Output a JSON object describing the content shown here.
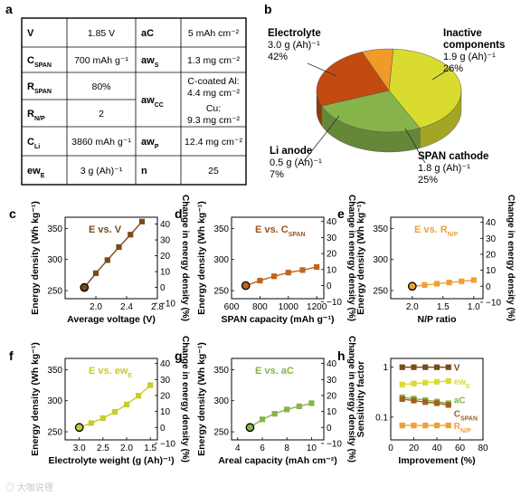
{
  "panel_letters": [
    "a",
    "b",
    "c",
    "d",
    "e",
    "f",
    "g",
    "h"
  ],
  "table": {
    "rows": [
      [
        {
          "main": "V",
          "sub": ""
        },
        "1.85 V",
        {
          "main": "aC",
          "sub": ""
        },
        "5 mAh cm⁻²"
      ],
      [
        {
          "main": "C",
          "sub": "SPAN"
        },
        "700 mAh g⁻¹",
        {
          "main": "aw",
          "sub": "S"
        },
        "1.3 mg cm⁻²"
      ],
      [
        {
          "main": "R",
          "sub": "SPAN"
        },
        "80%",
        {
          "main": "aw",
          "sub": "CC"
        },
        "C-coated Al:|4.4 mg cm⁻²"
      ],
      [
        {
          "main": "R",
          "sub": "N/P"
        },
        "2",
        null,
        "Cu:|9.3 mg cm⁻²"
      ],
      [
        {
          "main": "C",
          "sub": "Li"
        },
        "3860 mAh g⁻¹",
        {
          "main": "aw",
          "sub": "P"
        },
        "12.4 mg cm⁻²"
      ],
      [
        {
          "main": "ew",
          "sub": "E"
        },
        "3 g (Ah)⁻¹",
        {
          "main": "n",
          "sub": ""
        },
        "25"
      ]
    ]
  },
  "pie": {
    "slices": [
      {
        "label": "Electrolyte",
        "value_text": "3.0 g (Ah)⁻¹",
        "percent_text": "42%",
        "value": 42,
        "color": "#d9dc2e"
      },
      {
        "label": "Inactive|components",
        "value_text": "1.9 g (Ah)⁻¹",
        "percent_text": "26%",
        "value": 26,
        "color": "#86b44a"
      },
      {
        "label": "SPAN cathode",
        "value_text": "1.8 g (Ah)⁻¹",
        "percent_text": "25%",
        "value": 25,
        "color": "#c24a10"
      },
      {
        "label": "Li anode",
        "value_text": "0.5 g (Ah)⁻¹",
        "percent_text": "7%",
        "value": 7,
        "color": "#f19a2a"
      }
    ]
  },
  "chart_data": [
    {
      "panel": "c",
      "type": "line",
      "title": "E vs. V",
      "title_color": "#7a4a1a",
      "color": "#7a4a1a",
      "x": [
        1.85,
        2.0,
        2.15,
        2.3,
        2.45,
        2.6
      ],
      "y": [
        255,
        278,
        299,
        320,
        340,
        361
      ],
      "highlight": [
        1.85,
        255
      ],
      "xlabel": "Average voltage (V)",
      "xlim": [
        1.6,
        2.8
      ],
      "xticks": [
        2.0,
        2.4,
        2.8
      ],
      "xtick_labels": [
        "2.0",
        "2.4",
        "2.8"
      ],
      "ylabel": "Energy density (Wh kg⁻¹)",
      "ylim": [
        237,
        368
      ],
      "yticks": [
        250,
        300,
        350
      ],
      "ytick_labels": [
        "250",
        "300",
        "350"
      ],
      "y2label": "Change in energy density (%)",
      "y2ticks": [
        -10,
        0,
        10,
        20,
        30,
        40
      ],
      "y2tick_labels": [
        "−10",
        "0",
        "10",
        "20",
        "30",
        "40"
      ]
    },
    {
      "panel": "d",
      "type": "line",
      "title": "E vs. C",
      "title_sub": "SPAN",
      "title_color": "#a0501a",
      "color": "#c0651e",
      "x": [
        700,
        800,
        900,
        1000,
        1100,
        1200
      ],
      "y": [
        258,
        266,
        273,
        279,
        283,
        288
      ],
      "highlight": [
        700,
        258
      ],
      "xlabel": "SPAN capacity (mAh g⁻¹)",
      "xlim": [
        600,
        1250
      ],
      "xticks": [
        600,
        800,
        1000,
        1200
      ],
      "xtick_labels": [
        "600",
        "800",
        "1000",
        "1200"
      ],
      "ylabel": "Energy density (Wh kg⁻¹)",
      "ylim": [
        237,
        368
      ],
      "yticks": [
        250,
        300,
        350
      ],
      "ytick_labels": [
        "250",
        "300",
        "350"
      ],
      "y2label": "Change in energy density (%)",
      "y2ticks": [
        -10,
        0,
        10,
        20,
        30,
        40
      ],
      "y2tick_labels": [
        "−10",
        "0",
        "10",
        "20",
        "30",
        "40"
      ]
    },
    {
      "panel": "e",
      "type": "line",
      "title": "E vs. R",
      "title_sub": "N/P",
      "title_color": "#f0a030",
      "color": "#f0a030",
      "x": [
        2.0,
        1.8,
        1.6,
        1.4,
        1.2,
        1.0
      ],
      "y": [
        257,
        259,
        261,
        263,
        265,
        267
      ],
      "highlight": [
        2.0,
        257
      ],
      "xlabel": "N/P ratio",
      "xlim": [
        2.35,
        0.85
      ],
      "xticks": [
        2.0,
        1.5,
        1.0
      ],
      "xtick_labels": [
        "2.0",
        "1.5",
        "1.0"
      ],
      "ylabel": "Energy density (Wh kg⁻¹)",
      "ylim": [
        237,
        368
      ],
      "yticks": [
        250,
        300,
        350
      ],
      "ytick_labels": [
        "250",
        "300",
        "350"
      ],
      "y2label": "Change in energy density (%)",
      "y2ticks": [
        -10,
        0,
        10,
        20,
        30,
        40
      ],
      "y2tick_labels": [
        "−10",
        "0",
        "10",
        "20",
        "30",
        "40"
      ]
    },
    {
      "panel": "f",
      "type": "line",
      "title": "E vs. ew",
      "title_sub": "E",
      "title_color": "#c8cc2a",
      "color": "#c8cc2a",
      "x": [
        3.0,
        2.75,
        2.5,
        2.25,
        2.0,
        1.75,
        1.5
      ],
      "y": [
        257,
        264,
        272,
        282,
        294,
        308,
        325
      ],
      "highlight": [
        3.0,
        257
      ],
      "xlabel": "Electrolyte weight (g (Ah)⁻¹)",
      "xlim": [
        3.3,
        1.35
      ],
      "xticks": [
        3.0,
        2.5,
        2.0,
        1.5
      ],
      "xtick_labels": [
        "3.0",
        "2.5",
        "2.0",
        "1.5"
      ],
      "ylabel": "Energy density (Wh kg⁻¹)",
      "ylim": [
        237,
        368
      ],
      "yticks": [
        250,
        300,
        350
      ],
      "ytick_labels": [
        "250",
        "300",
        "350"
      ],
      "y2label": "Change in energy density (%)",
      "y2ticks": [
        -10,
        0,
        10,
        20,
        30,
        40
      ],
      "y2tick_labels": [
        "−10",
        "0",
        "10",
        "20",
        "30",
        "40"
      ]
    },
    {
      "panel": "g",
      "type": "line",
      "title": "E vs. aC",
      "title_color": "#86b44a",
      "color": "#86b44a",
      "x": [
        5,
        6,
        7,
        8,
        9,
        10
      ],
      "y": [
        257,
        270,
        279,
        286,
        291,
        296
      ],
      "highlight": [
        5,
        257
      ],
      "xlabel": "Areal capacity (mAh cm⁻²)",
      "xlim": [
        3.5,
        11
      ],
      "xticks": [
        4,
        6,
        8,
        10
      ],
      "xtick_labels": [
        "4",
        "6",
        "8",
        "10"
      ],
      "ylabel": "Energy density (Wh kg⁻¹)",
      "ylim": [
        237,
        368
      ],
      "yticks": [
        250,
        300,
        350
      ],
      "ytick_labels": [
        "250",
        "300",
        "350"
      ],
      "y2label": "Change in energy density (%)",
      "y2ticks": [
        -10,
        0,
        10,
        20,
        30,
        40
      ],
      "y2tick_labels": [
        "−10",
        "0",
        "10",
        "20",
        "30",
        "40"
      ]
    },
    {
      "panel": "h",
      "type": "line",
      "ylog": true,
      "xlabel": "Improvement (%)",
      "xlim": [
        0,
        80
      ],
      "xticks": [
        0,
        20,
        40,
        60,
        80
      ],
      "xtick_labels": [
        "0",
        "20",
        "40",
        "60",
        "80"
      ],
      "ylabel": "Sensitivity factor",
      "ylim": [
        0.035,
        1.5
      ],
      "yticks": [
        0.1,
        1
      ],
      "ytick_labels": [
        "0.1",
        "1"
      ],
      "x": [
        10,
        20,
        30,
        40,
        50
      ],
      "series": [
        {
          "name": "V",
          "sub": "",
          "color": "#7a4a1a",
          "values": [
            1.0,
            1.0,
            1.0,
            1.0,
            1.0
          ]
        },
        {
          "name": "ew",
          "sub": "E",
          "color": "#d9dc2e",
          "values": [
            0.45,
            0.47,
            0.49,
            0.51,
            0.53
          ]
        },
        {
          "name": "aC",
          "sub": "",
          "color": "#86b44a",
          "values": [
            0.25,
            0.235,
            0.22,
            0.205,
            0.19
          ]
        },
        {
          "name": "C",
          "sub": "SPAN",
          "color": "#a0601e",
          "values": [
            0.23,
            0.215,
            0.2,
            0.19,
            0.175
          ]
        },
        {
          "name": "R",
          "sub": "N/P",
          "color": "#f0a030",
          "values": [
            0.068,
            0.068,
            0.068,
            0.068,
            0.068
          ]
        }
      ]
    }
  ]
}
